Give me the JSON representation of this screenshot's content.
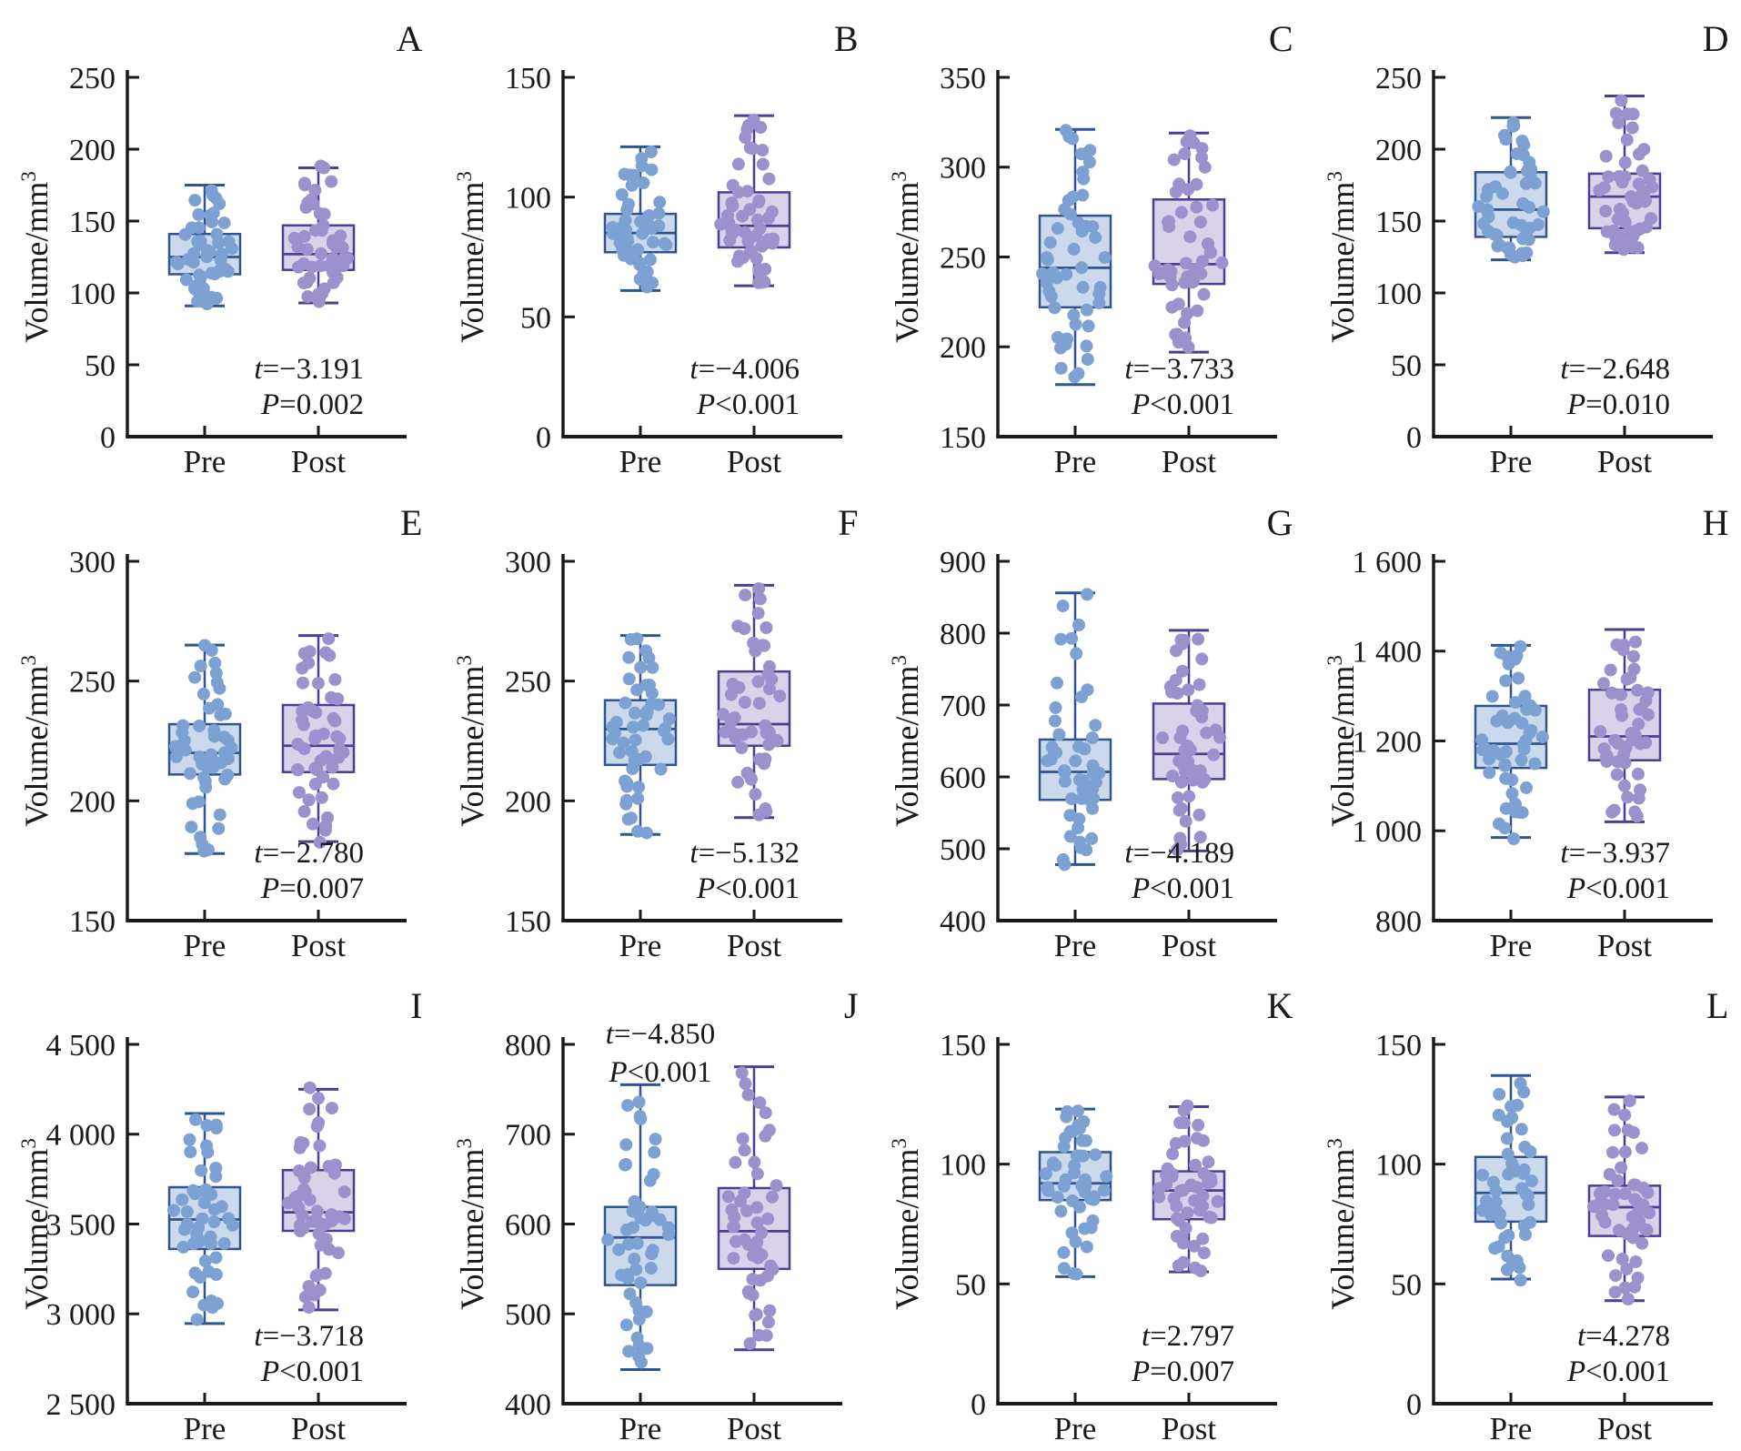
{
  "figure": {
    "ylabel_base": "Volume/mm",
    "ylabel_superscript": "3",
    "x_categories": [
      "Pre",
      "Post"
    ],
    "colors": {
      "axis": "#1A1A1A",
      "text": "#1A1A1A",
      "pre_dot": "#7CA1D2",
      "pre_box_fill": "#CBD9EC",
      "pre_box_stroke": "#30548D",
      "post_dot": "#9C90CD",
      "post_box_fill": "#D8D3E9",
      "post_box_stroke": "#4F3D94"
    }
  },
  "chart_data": [
    {
      "type": "box",
      "panel_label": "A",
      "ylabel": "Volume/mm³",
      "categories": [
        "Pre",
        "Post"
      ],
      "ylim": [
        0,
        250
      ],
      "ytick_values": [
        0,
        50,
        100,
        150,
        200,
        250
      ],
      "ytick_labels": [
        "0",
        "50",
        "100",
        "150",
        "200",
        "250"
      ],
      "annotation": {
        "position": "bottom-right",
        "lines": [
          {
            "var": "t",
            "text": "=−3.191"
          },
          {
            "var": "P",
            "text": "=0.002"
          }
        ]
      },
      "series": [
        {
          "name": "Pre",
          "whisker_low": 91,
          "q1": 113,
          "median": 125,
          "q3": 141,
          "whisker_high": 175,
          "points": 50
        },
        {
          "name": "Post",
          "whisker_low": 93,
          "q1": 116,
          "median": 127,
          "q3": 147,
          "whisker_high": 187,
          "points": 50
        }
      ]
    },
    {
      "type": "box",
      "panel_label": "B",
      "ylabel": "Volume/mm³",
      "categories": [
        "Pre",
        "Post"
      ],
      "ylim": [
        0,
        150
      ],
      "ytick_values": [
        0,
        50,
        100,
        150
      ],
      "ytick_labels": [
        "0",
        "50",
        "100",
        "150"
      ],
      "annotation": {
        "position": "bottom-right",
        "lines": [
          {
            "var": "t",
            "text": "=−4.006"
          },
          {
            "var": "P",
            "text": "<0.001"
          }
        ]
      },
      "series": [
        {
          "name": "Pre",
          "whisker_low": 61,
          "q1": 77,
          "median": 85,
          "q3": 93,
          "whisker_high": 121,
          "points": 50
        },
        {
          "name": "Post",
          "whisker_low": 63,
          "q1": 79,
          "median": 88,
          "q3": 102,
          "whisker_high": 134,
          "points": 50
        }
      ]
    },
    {
      "type": "box",
      "panel_label": "C",
      "ylabel": "Volume/mm³",
      "categories": [
        "Pre",
        "Post"
      ],
      "ylim": [
        150,
        350
      ],
      "ytick_values": [
        150,
        200,
        250,
        300,
        350
      ],
      "ytick_labels": [
        "150",
        "200",
        "250",
        "300",
        "350"
      ],
      "annotation": {
        "position": "bottom-right",
        "lines": [
          {
            "var": "t",
            "text": "=−3.733"
          },
          {
            "var": "P",
            "text": "<0.001"
          }
        ]
      },
      "series": [
        {
          "name": "Pre",
          "whisker_low": 179,
          "q1": 222,
          "median": 244,
          "q3": 273,
          "whisker_high": 321,
          "points": 50
        },
        {
          "name": "Post",
          "whisker_low": 197,
          "q1": 235,
          "median": 246,
          "q3": 282,
          "whisker_high": 319,
          "points": 50
        }
      ]
    },
    {
      "type": "box",
      "panel_label": "D",
      "ylabel": "Volume/mm³",
      "categories": [
        "Pre",
        "Post"
      ],
      "ylim": [
        0,
        250
      ],
      "ytick_values": [
        0,
        50,
        100,
        150,
        200,
        250
      ],
      "ytick_labels": [
        "0",
        "50",
        "100",
        "150",
        "200",
        "250"
      ],
      "annotation": {
        "position": "bottom-right",
        "lines": [
          {
            "var": "t",
            "text": "=−2.648"
          },
          {
            "var": "P",
            "text": "=0.010"
          }
        ]
      },
      "series": [
        {
          "name": "Pre",
          "whisker_low": 123,
          "q1": 139,
          "median": 158,
          "q3": 184,
          "whisker_high": 222,
          "points": 50
        },
        {
          "name": "Post",
          "whisker_low": 128,
          "q1": 145,
          "median": 167,
          "q3": 183,
          "whisker_high": 237,
          "points": 50
        }
      ]
    },
    {
      "type": "box",
      "panel_label": "E",
      "ylabel": "Volume/mm³",
      "categories": [
        "Pre",
        "Post"
      ],
      "ylim": [
        150,
        300
      ],
      "ytick_values": [
        150,
        200,
        250,
        300
      ],
      "ytick_labels": [
        "150",
        "200",
        "250",
        "300"
      ],
      "annotation": {
        "position": "bottom-right",
        "lines": [
          {
            "var": "t",
            "text": "=−2.780"
          },
          {
            "var": "P",
            "text": "=0.007"
          }
        ]
      },
      "series": [
        {
          "name": "Pre",
          "whisker_low": 178,
          "q1": 211,
          "median": 220,
          "q3": 232,
          "whisker_high": 265,
          "points": 50
        },
        {
          "name": "Post",
          "whisker_low": 183,
          "q1": 212,
          "median": 223,
          "q3": 240,
          "whisker_high": 269,
          "points": 50
        }
      ]
    },
    {
      "type": "box",
      "panel_label": "F",
      "ylabel": "Volume/mm³",
      "categories": [
        "Pre",
        "Post"
      ],
      "ylim": [
        150,
        300
      ],
      "ytick_values": [
        150,
        200,
        250,
        300
      ],
      "ytick_labels": [
        "150",
        "200",
        "250",
        "300"
      ],
      "annotation": {
        "position": "bottom-right",
        "lines": [
          {
            "var": "t",
            "text": "=−5.132"
          },
          {
            "var": "P",
            "text": "<0.001"
          }
        ]
      },
      "series": [
        {
          "name": "Pre",
          "whisker_low": 186,
          "q1": 215,
          "median": 230,
          "q3": 242,
          "whisker_high": 269,
          "points": 50
        },
        {
          "name": "Post",
          "whisker_low": 193,
          "q1": 223,
          "median": 232,
          "q3": 254,
          "whisker_high": 290,
          "points": 50
        }
      ]
    },
    {
      "type": "box",
      "panel_label": "G",
      "ylabel": "Volume/mm³",
      "categories": [
        "Pre",
        "Post"
      ],
      "ylim": [
        400,
        900
      ],
      "ytick_values": [
        400,
        500,
        600,
        700,
        800,
        900
      ],
      "ytick_labels": [
        "400",
        "500",
        "600",
        "700",
        "800",
        "900"
      ],
      "annotation": {
        "position": "bottom-right",
        "lines": [
          {
            "var": "t",
            "text": "=−4.189"
          },
          {
            "var": "P",
            "text": "<0.001"
          }
        ]
      },
      "series": [
        {
          "name": "Pre",
          "whisker_low": 478,
          "q1": 568,
          "median": 607,
          "q3": 652,
          "whisker_high": 856,
          "points": 50
        },
        {
          "name": "Post",
          "whisker_low": 497,
          "q1": 597,
          "median": 632,
          "q3": 702,
          "whisker_high": 804,
          "points": 50
        }
      ]
    },
    {
      "type": "box",
      "panel_label": "H",
      "ylabel": "Volume/mm³",
      "categories": [
        "Pre",
        "Post"
      ],
      "ylim": [
        800,
        1600
      ],
      "ytick_values": [
        800,
        1000,
        1200,
        1400,
        1600
      ],
      "ytick_labels": [
        "800",
        "1 000",
        "1 200",
        "1 400",
        "1 600"
      ],
      "annotation": {
        "position": "bottom-right",
        "lines": [
          {
            "var": "t",
            "text": "=−3.937"
          },
          {
            "var": "P",
            "text": "<0.001"
          }
        ]
      },
      "series": [
        {
          "name": "Pre",
          "whisker_low": 985,
          "q1": 1140,
          "median": 1194,
          "q3": 1278,
          "whisker_high": 1413,
          "points": 50
        },
        {
          "name": "Post",
          "whisker_low": 1020,
          "q1": 1157,
          "median": 1210,
          "q3": 1314,
          "whisker_high": 1448,
          "points": 50
        }
      ]
    },
    {
      "type": "box",
      "panel_label": "I",
      "ylabel": "Volume/mm³",
      "categories": [
        "Pre",
        "Post"
      ],
      "ylim": [
        2500,
        4500
      ],
      "ytick_values": [
        2500,
        3000,
        3500,
        4000,
        4500
      ],
      "ytick_labels": [
        "2 500",
        "3 000",
        "3 500",
        "4 000",
        "4 500"
      ],
      "annotation": {
        "position": "bottom-right",
        "lines": [
          {
            "var": "t",
            "text": "=−3.718"
          },
          {
            "var": "P",
            "text": "<0.001"
          }
        ]
      },
      "series": [
        {
          "name": "Pre",
          "whisker_low": 2946,
          "q1": 3361,
          "median": 3525,
          "q3": 3705,
          "whisker_high": 4115,
          "points": 50
        },
        {
          "name": "Post",
          "whisker_low": 3022,
          "q1": 3462,
          "median": 3565,
          "q3": 3800,
          "whisker_high": 4250,
          "points": 50
        }
      ]
    },
    {
      "type": "box",
      "panel_label": "J",
      "ylabel": "Volume/mm³",
      "categories": [
        "Pre",
        "Post"
      ],
      "ylim": [
        400,
        800
      ],
      "ytick_values": [
        400,
        500,
        600,
        700,
        800
      ],
      "ytick_labels": [
        "400",
        "500",
        "600",
        "700",
        "800"
      ],
      "annotation": {
        "position": "top-left",
        "lines": [
          {
            "var": "t",
            "text": "=−4.850"
          },
          {
            "var": "P",
            "text": "<0.001"
          }
        ]
      },
      "series": [
        {
          "name": "Pre",
          "whisker_low": 438,
          "q1": 532,
          "median": 585,
          "q3": 619,
          "whisker_high": 755,
          "points": 50
        },
        {
          "name": "Post",
          "whisker_low": 460,
          "q1": 550,
          "median": 592,
          "q3": 640,
          "whisker_high": 775,
          "points": 50
        }
      ]
    },
    {
      "type": "box",
      "panel_label": "K",
      "ylabel": "Volume/mm³",
      "categories": [
        "Pre",
        "Post"
      ],
      "ylim": [
        0,
        150
      ],
      "ytick_values": [
        0,
        50,
        100,
        150
      ],
      "ytick_labels": [
        "0",
        "50",
        "100",
        "150"
      ],
      "annotation": {
        "position": "bottom-right",
        "lines": [
          {
            "var": "t",
            "text": "=2.797"
          },
          {
            "var": "P",
            "text": "=0.007"
          }
        ]
      },
      "series": [
        {
          "name": "Pre",
          "whisker_low": 53,
          "q1": 85,
          "median": 92,
          "q3": 105,
          "whisker_high": 123,
          "points": 50
        },
        {
          "name": "Post",
          "whisker_low": 55,
          "q1": 77,
          "median": 89,
          "q3": 97,
          "whisker_high": 124,
          "points": 50
        }
      ]
    },
    {
      "type": "box",
      "panel_label": "L",
      "ylabel": "Volume/mm³",
      "categories": [
        "Pre",
        "Post"
      ],
      "ylim": [
        0,
        150
      ],
      "ytick_values": [
        0,
        50,
        100,
        150
      ],
      "ytick_labels": [
        "0",
        "50",
        "100",
        "150"
      ],
      "annotation": {
        "position": "bottom-right",
        "lines": [
          {
            "var": "t",
            "text": "=4.278"
          },
          {
            "var": "P",
            "text": "<0.001"
          }
        ]
      },
      "series": [
        {
          "name": "Pre",
          "whisker_low": 52,
          "q1": 76,
          "median": 88,
          "q3": 103,
          "whisker_high": 137,
          "points": 50
        },
        {
          "name": "Post",
          "whisker_low": 43,
          "q1": 70,
          "median": 82,
          "q3": 91,
          "whisker_high": 128,
          "points": 50
        }
      ]
    }
  ]
}
